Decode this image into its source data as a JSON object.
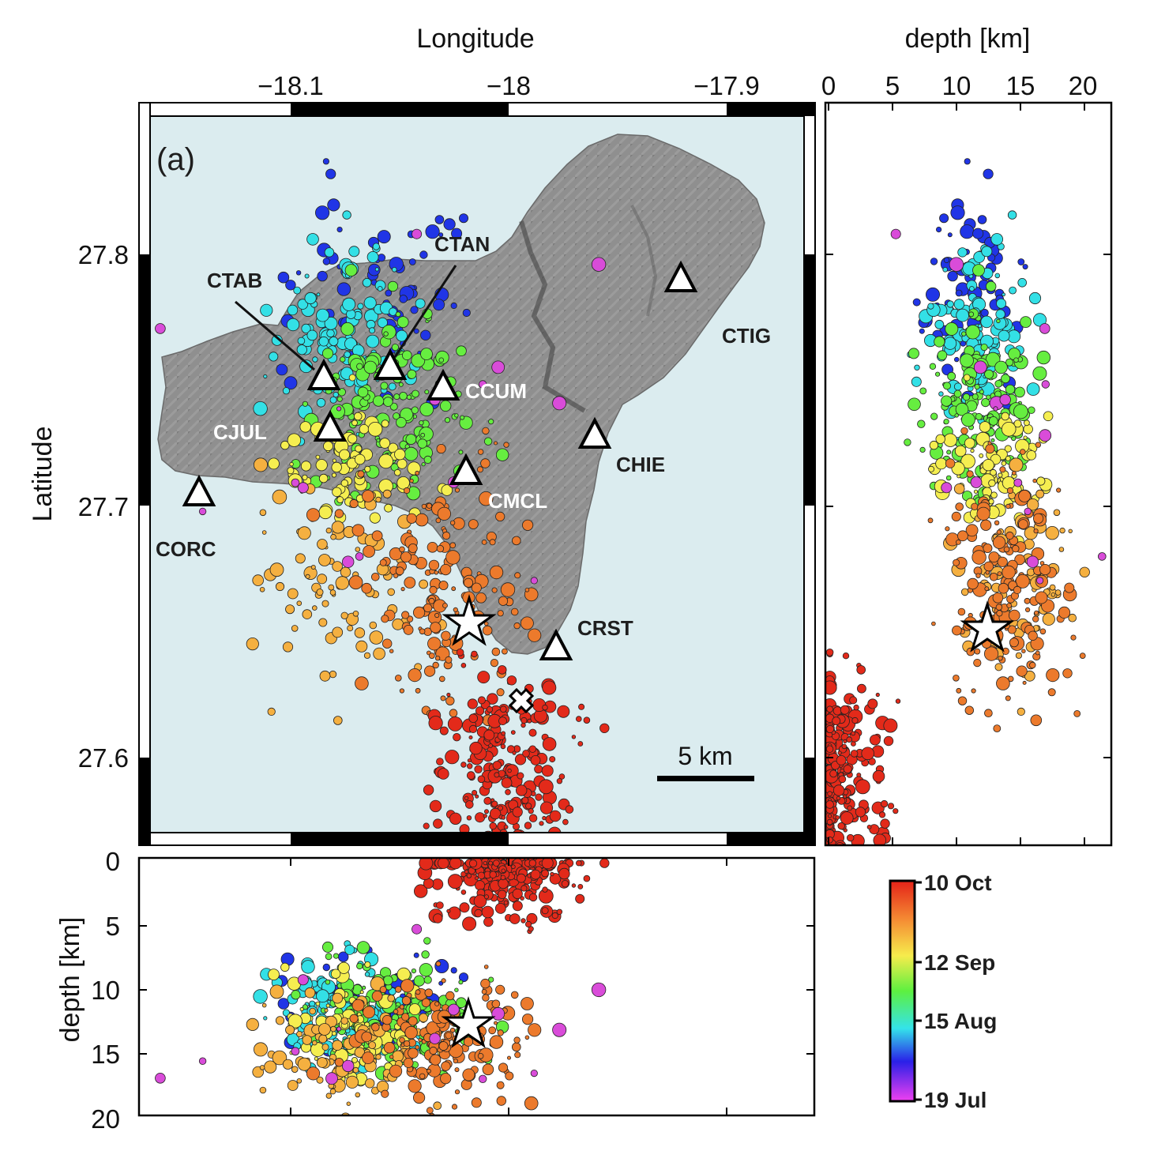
{
  "figure": {
    "panel_label": "(a)",
    "x_axis_title": "Longitude",
    "y_axis_title": "Latitude",
    "depth_axis_title_right": "depth [km]",
    "depth_axis_title_bottom": "depth [km]",
    "scale_bar_label": "5 km",
    "lon_ticks": [
      "−18.1",
      "−18",
      "−17.9"
    ],
    "lat_ticks": [
      "27.8",
      "27.7",
      "27.6"
    ],
    "depth_ticks_right": [
      "0",
      "5",
      "10",
      "15",
      "20"
    ],
    "depth_ticks_bottom": [
      "0",
      "5",
      "10",
      "15",
      "20"
    ],
    "colorbar_labels": [
      "10 Oct",
      "12 Sep",
      "15 Aug",
      "19 Jul"
    ],
    "colors": {
      "sea": "#dbecef",
      "land": "#8d8d8d",
      "station_fill": "#ffffff",
      "colorbar": [
        "#e8e8ee",
        "#d94cd9",
        "#2035e6",
        "#33e0e6",
        "#66ee40",
        "#f5ee50",
        "#f5b040",
        "#ec7a2c",
        "#e32a1a"
      ]
    },
    "stations": [
      {
        "name": "CTAB"
      },
      {
        "name": "CTAN"
      },
      {
        "name": "CCUM"
      },
      {
        "name": "CJUL"
      },
      {
        "name": "CMCL"
      },
      {
        "name": "CHIE"
      },
      {
        "name": "CTIG"
      },
      {
        "name": "CORC"
      },
      {
        "name": "CRST"
      }
    ]
  },
  "chart_data": {
    "type": "scatter",
    "title": "",
    "xlabel": "Longitude",
    "ylabel": "Latitude",
    "xlim": [
      -18.17,
      -17.86
    ],
    "ylim": [
      27.565,
      27.86
    ],
    "depth_range_km": [
      0,
      22
    ],
    "colorbar": {
      "label_top": "10 Oct",
      "label_bottom": "19 Jul",
      "ticks": [
        "10 Oct",
        "12 Sep",
        "15 Aug",
        "19 Jul"
      ]
    },
    "stations": [
      {
        "name": "CTAB",
        "lon": -18.082,
        "lat": 27.752
      },
      {
        "name": "CTAN",
        "lon": -18.053,
        "lat": 27.756
      },
      {
        "name": "CCUM",
        "lon": -18.028,
        "lat": 27.748
      },
      {
        "name": "CJUL",
        "lon": -18.08,
        "lat": 27.732
      },
      {
        "name": "CMCL",
        "lon": -18.019,
        "lat": 27.713
      },
      {
        "name": "CHIE",
        "lon": -17.961,
        "lat": 27.729
      },
      {
        "name": "CTIG",
        "lon": -17.922,
        "lat": 27.791
      },
      {
        "name": "CORC",
        "lon": -18.15,
        "lat": 27.705
      },
      {
        "name": "CRST",
        "lon": -17.979,
        "lat": 27.645
      }
    ],
    "mainshock": {
      "lon": -18.019,
      "lat": 27.654,
      "depth_km": 12.3
    },
    "marker_x": {
      "lon": -18.006,
      "lat": 27.622
    },
    "clusters": [
      {
        "period": "19 Jul - 15 Aug",
        "lon": -18.063,
        "lat": 27.788,
        "depth_km": 11.0
      },
      {
        "period": "15 Aug - 12 Sep",
        "lon": -18.075,
        "lat": 27.765,
        "depth_km": 11.5
      },
      {
        "period": "12 Sep - late Sep",
        "lon": -18.054,
        "lat": 27.74,
        "depth_km": 12.0
      },
      {
        "period": "late Sep - early Oct",
        "lon": -18.07,
        "lat": 27.715,
        "depth_km": 12.5
      },
      {
        "period": "early Oct",
        "lon": -18.075,
        "lat": 27.67,
        "depth_km": 15.0
      },
      {
        "period": "10 Oct",
        "lon": -18.03,
        "lat": 27.67,
        "depth_km": 13.5
      },
      {
        "period": "10 Oct shallow",
        "lon": -18.0,
        "lat": 27.59,
        "depth_km": 1.0
      }
    ]
  }
}
